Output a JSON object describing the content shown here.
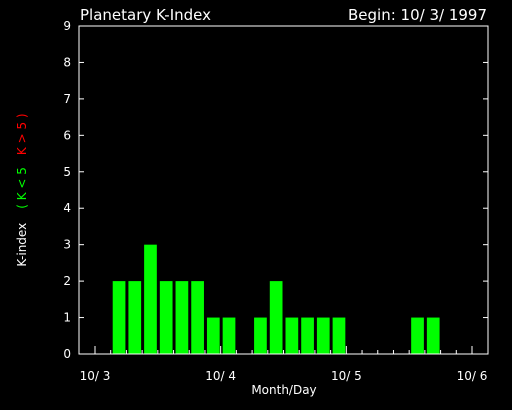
{
  "chart_data": {
    "type": "bar",
    "title": "Planetary K-Index",
    "subtitle": "Begin: 10/ 3/ 1997",
    "xlabel": "Month/Day",
    "ylabel_parts": [
      {
        "text": "K-index",
        "color": "#ffffff"
      },
      {
        "text": "( K < 5",
        "color": "#00ff00"
      },
      {
        "text": "K > 5 )",
        "color": "#ff0000"
      }
    ],
    "ylim": [
      0,
      9
    ],
    "yticks": [
      "0",
      "1",
      "2",
      "3",
      "4",
      "5",
      "6",
      "7",
      "8",
      "9"
    ],
    "xlim": [
      0,
      24
    ],
    "xticks": [
      {
        "value": 0,
        "label": "10/ 3"
      },
      {
        "value": 8,
        "label": "10/ 4"
      },
      {
        "value": 16,
        "label": "10/ 5"
      },
      {
        "value": 24,
        "label": "10/ 6"
      }
    ],
    "bar_color": "#00ff00",
    "bar_period_hours": 3,
    "values": [
      null,
      2,
      2,
      3,
      2,
      2,
      2,
      1,
      1,
      null,
      1,
      2,
      1,
      1,
      1,
      1,
      null,
      null,
      null,
      null,
      1,
      1,
      null,
      null
    ]
  }
}
